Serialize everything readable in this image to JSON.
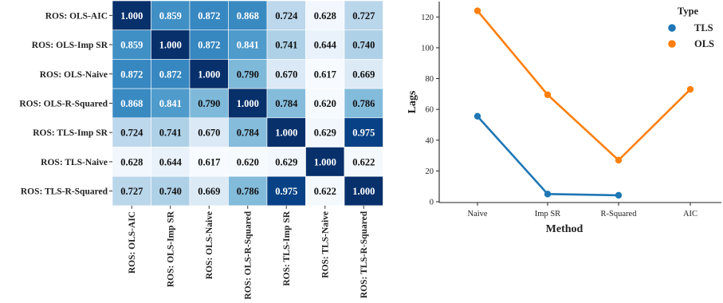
{
  "chart_data": [
    {
      "type": "heatmap",
      "rows": [
        "ROS: OLS-AIC",
        "ROS: OLS-Imp SR",
        "ROS: OLS-Naive",
        "ROS: OLS-R-Squared",
        "ROS: TLS-Imp SR",
        "ROS: TLS-Naive",
        "ROS: TLS-R-Squared"
      ],
      "columns": [
        "ROS: OLS-AIC",
        "ROS: OLS-Imp SR",
        "ROS: OLS-Naive",
        "ROS: OLS-R-Squared",
        "ROS: TLS-Imp SR",
        "ROS: TLS-Naive",
        "ROS: TLS-R-Squared"
      ],
      "values": [
        [
          "1.000",
          "0.859",
          "0.872",
          "0.868",
          "0.724",
          "0.628",
          "0.727"
        ],
        [
          "0.859",
          "1.000",
          "0.872",
          "0.841",
          "0.741",
          "0.644",
          "0.740"
        ],
        [
          "0.872",
          "0.872",
          "1.000",
          "0.790",
          "0.670",
          "0.617",
          "0.669"
        ],
        [
          "0.868",
          "0.841",
          "0.790",
          "1.000",
          "0.784",
          "0.620",
          "0.786"
        ],
        [
          "0.724",
          "0.741",
          "0.670",
          "0.784",
          "1.000",
          "0.629",
          "0.975"
        ],
        [
          "0.628",
          "0.644",
          "0.617",
          "0.620",
          "0.629",
          "1.000",
          "0.622"
        ],
        [
          "0.727",
          "0.740",
          "0.669",
          "0.786",
          "0.975",
          "0.622",
          "1.000"
        ]
      ],
      "color_range": [
        0.617,
        1.0
      ],
      "colormap": [
        "#f7fbff",
        "#deebf7",
        "#c6dbef",
        "#9ecae1",
        "#6baed6",
        "#4292c6",
        "#2171b5",
        "#08519c",
        "#08306b"
      ]
    },
    {
      "type": "line",
      "categories": [
        "Naive",
        "Imp SR",
        "R-Squared",
        "AIC"
      ],
      "xlabel": "Method",
      "ylabel": "Lags",
      "ylim": [
        0,
        130
      ],
      "yticks": [
        "0",
        "20",
        "40",
        "60",
        "80",
        "100",
        "120"
      ],
      "legend": {
        "title": "Type",
        "placement": "top-right"
      },
      "series": [
        {
          "name": "TLS",
          "color": "#1f77b4",
          "values": [
            55.5,
            5,
            4.2,
            null
          ]
        },
        {
          "name": "OLS",
          "color": "#ff7f0e",
          "values": [
            124,
            69.5,
            27,
            73
          ]
        }
      ]
    }
  ]
}
